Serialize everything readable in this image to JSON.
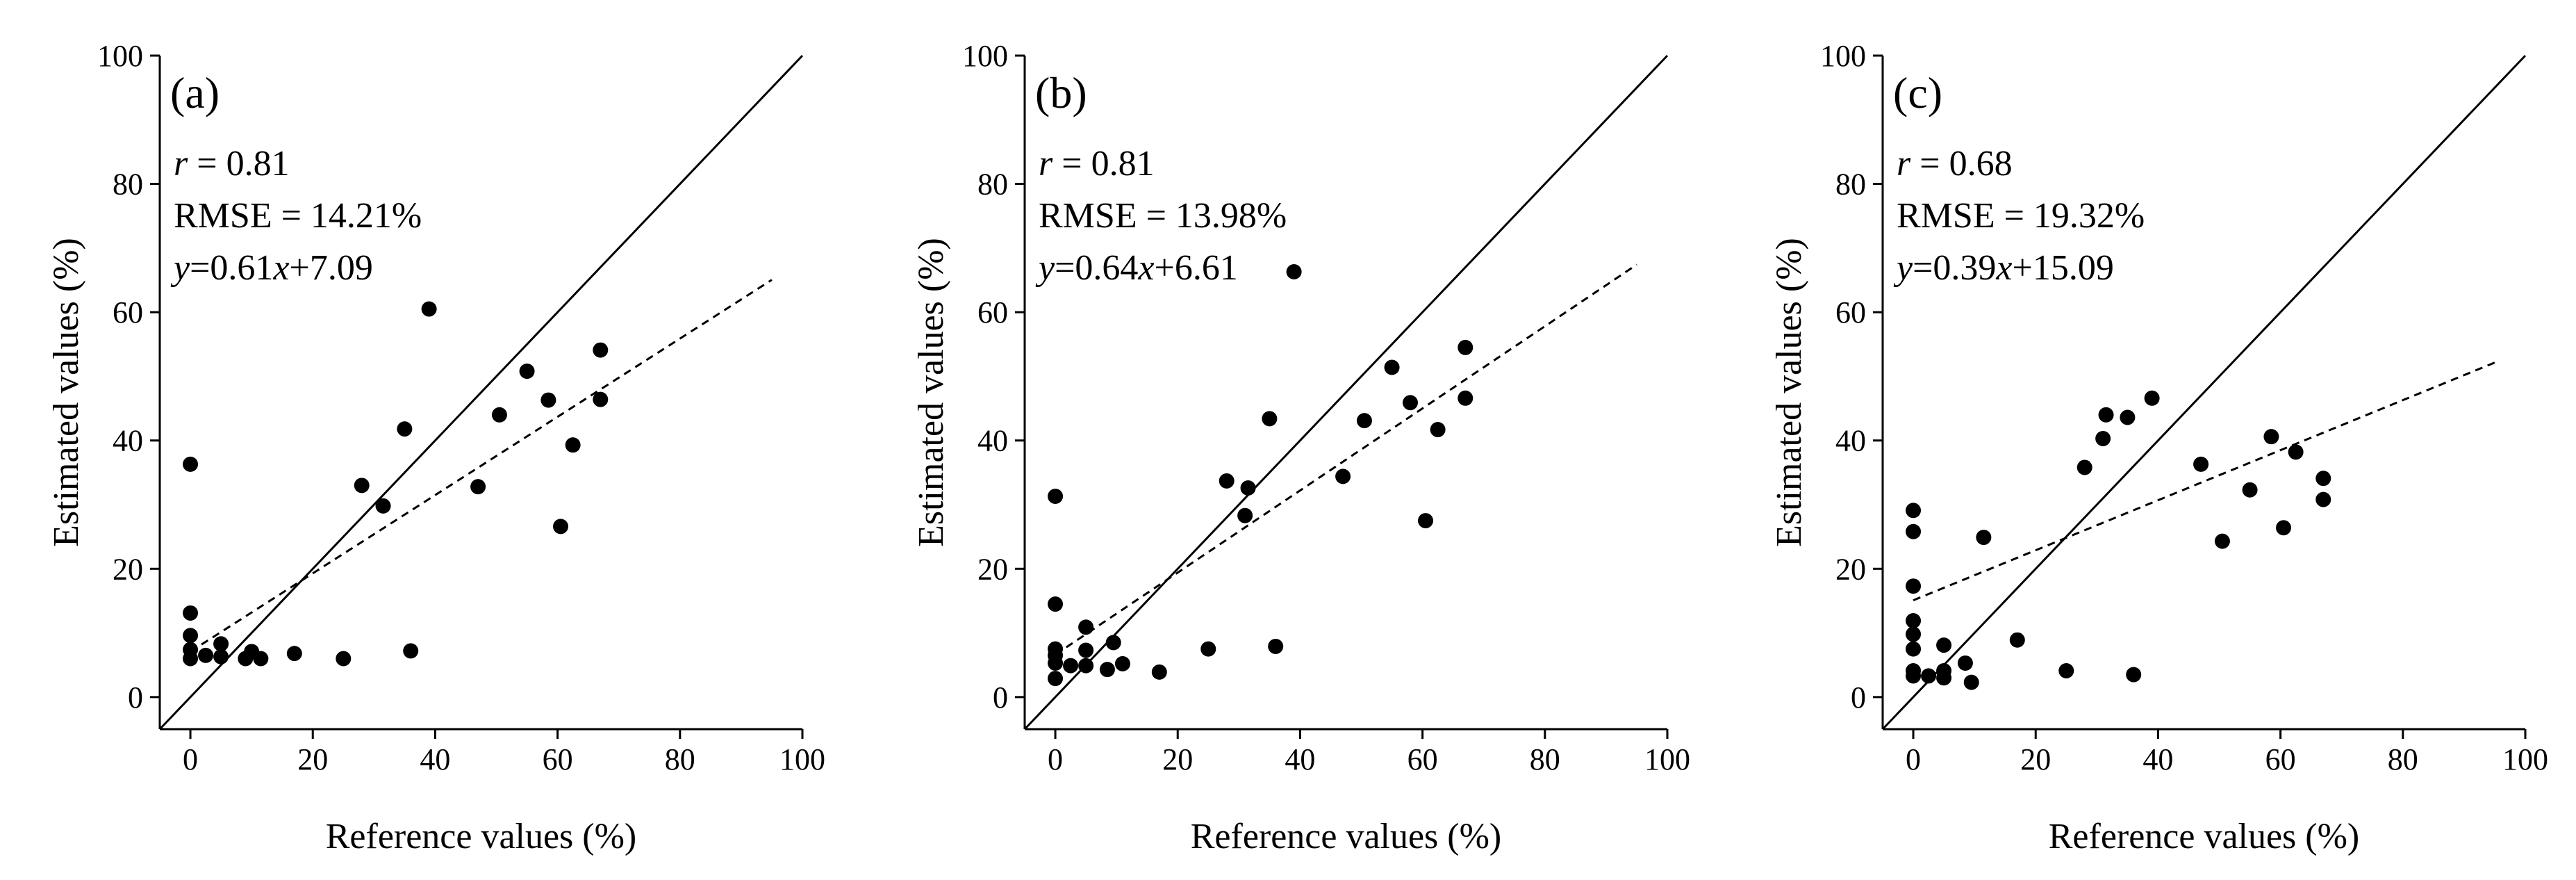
{
  "chart_data": [
    {
      "type": "scatter",
      "panel_label": "(a)",
      "stats": {
        "r_symbol": "r",
        "r_value": " = 0.81",
        "rmse": "RMSE = 14.21%",
        "eq_symbol": "y",
        "eq_mid": "=0.61",
        "eq_x": "x",
        "eq_tail": "+7.09"
      },
      "xlabel": "Reference values (%)",
      "ylabel": "Estimated values (%)",
      "xlim": [
        -5,
        100
      ],
      "ylim": [
        -5,
        100
      ],
      "xticks": [
        "0",
        "20",
        "40",
        "60",
        "80",
        "100"
      ],
      "yticks": [
        "0",
        "20",
        "40",
        "60",
        "80",
        "100"
      ],
      "one_to_one": {
        "x": [
          -5,
          100
        ],
        "y": [
          -5,
          100
        ]
      },
      "fit": {
        "slope": 0.61,
        "intercept": 7.09,
        "x_range": [
          0,
          95
        ]
      },
      "points": [
        [
          0,
          36.3
        ],
        [
          0,
          13.1
        ],
        [
          0,
          9.6
        ],
        [
          0,
          7.4
        ],
        [
          0,
          6.0
        ],
        [
          2.5,
          6.5
        ],
        [
          5,
          8.3
        ],
        [
          5,
          6.3
        ],
        [
          9,
          6.0
        ],
        [
          10,
          7.1
        ],
        [
          11.5,
          6.0
        ],
        [
          17,
          6.8
        ],
        [
          25,
          6.0
        ],
        [
          28,
          33.0
        ],
        [
          31.5,
          29.8
        ],
        [
          35,
          41.8
        ],
        [
          36,
          7.2
        ],
        [
          39,
          60.5
        ],
        [
          47,
          32.8
        ],
        [
          50.5,
          44.0
        ],
        [
          55,
          50.8
        ],
        [
          58.5,
          46.3
        ],
        [
          60.5,
          26.6
        ],
        [
          62.5,
          39.3
        ],
        [
          67,
          54.1
        ],
        [
          67,
          46.4
        ]
      ]
    },
    {
      "type": "scatter",
      "panel_label": "(b)",
      "stats": {
        "r_symbol": "r",
        "r_value": " = 0.81",
        "rmse": "RMSE = 13.98%",
        "eq_symbol": "y",
        "eq_mid": "=0.64",
        "eq_x": "x",
        "eq_tail": "+6.61"
      },
      "xlabel": "Reference values (%)",
      "ylabel": "Estimated values (%)",
      "xlim": [
        -5,
        100
      ],
      "ylim": [
        -5,
        100
      ],
      "xticks": [
        "0",
        "20",
        "40",
        "60",
        "80",
        "100"
      ],
      "yticks": [
        "0",
        "20",
        "40",
        "60",
        "80",
        "100"
      ],
      "one_to_one": {
        "x": [
          -5,
          100
        ],
        "y": [
          -5,
          100
        ]
      },
      "fit": {
        "slope": 0.64,
        "intercept": 6.61,
        "x_range": [
          0,
          95
        ]
      },
      "points": [
        [
          0,
          31.3
        ],
        [
          0,
          14.5
        ],
        [
          0,
          7.5
        ],
        [
          0,
          6.5
        ],
        [
          0,
          5.3
        ],
        [
          0,
          2.9
        ],
        [
          2.5,
          4.9
        ],
        [
          5,
          10.9
        ],
        [
          5,
          7.3
        ],
        [
          5,
          4.9
        ],
        [
          8.5,
          4.3
        ],
        [
          9.5,
          8.5
        ],
        [
          11,
          5.2
        ],
        [
          17,
          3.9
        ],
        [
          25,
          7.5
        ],
        [
          28,
          33.7
        ],
        [
          31,
          28.3
        ],
        [
          31.5,
          32.6
        ],
        [
          35,
          43.4
        ],
        [
          36,
          7.9
        ],
        [
          39,
          66.3
        ],
        [
          47,
          34.4
        ],
        [
          50.5,
          43.1
        ],
        [
          55,
          51.4
        ],
        [
          58,
          45.9
        ],
        [
          60.5,
          27.5
        ],
        [
          62.5,
          41.7
        ],
        [
          67,
          54.5
        ],
        [
          67,
          46.6
        ]
      ]
    },
    {
      "type": "scatter",
      "panel_label": "(c)",
      "stats": {
        "r_symbol": "r",
        "r_value": " = 0.68",
        "rmse": "RMSE = 19.32%",
        "eq_symbol": "y",
        "eq_mid": "=0.39",
        "eq_x": "x",
        "eq_tail": "+15.09"
      },
      "xlabel": "Reference values (%)",
      "ylabel": "Estimated values (%)",
      "xlim": [
        -5,
        100
      ],
      "ylim": [
        -5,
        100
      ],
      "xticks": [
        "0",
        "20",
        "40",
        "60",
        "80",
        "100"
      ],
      "yticks": [
        "0",
        "20",
        "40",
        "60",
        "80",
        "100"
      ],
      "one_to_one": {
        "x": [
          -5,
          100
        ],
        "y": [
          -5,
          100
        ]
      },
      "fit": {
        "slope": 0.39,
        "intercept": 15.09,
        "x_range": [
          0,
          95
        ]
      },
      "points": [
        [
          0,
          29.1
        ],
        [
          0,
          25.8
        ],
        [
          0,
          17.3
        ],
        [
          0,
          11.9
        ],
        [
          0,
          9.8
        ],
        [
          0,
          7.5
        ],
        [
          0,
          4.1
        ],
        [
          0,
          3.3
        ],
        [
          2.5,
          3.3
        ],
        [
          5,
          8.1
        ],
        [
          5,
          4.1
        ],
        [
          5,
          3.0
        ],
        [
          8.5,
          5.3
        ],
        [
          9.5,
          2.3
        ],
        [
          11.5,
          24.9
        ],
        [
          17,
          8.9
        ],
        [
          25,
          4.1
        ],
        [
          28,
          35.8
        ],
        [
          31,
          40.3
        ],
        [
          31.5,
          44.0
        ],
        [
          35,
          43.6
        ],
        [
          36,
          3.5
        ],
        [
          39,
          46.6
        ],
        [
          47,
          36.3
        ],
        [
          50.5,
          24.3
        ],
        [
          55,
          32.3
        ],
        [
          58.5,
          40.6
        ],
        [
          60.5,
          26.4
        ],
        [
          62.5,
          38.2
        ],
        [
          67,
          34.1
        ],
        [
          67,
          30.8
        ]
      ]
    }
  ]
}
